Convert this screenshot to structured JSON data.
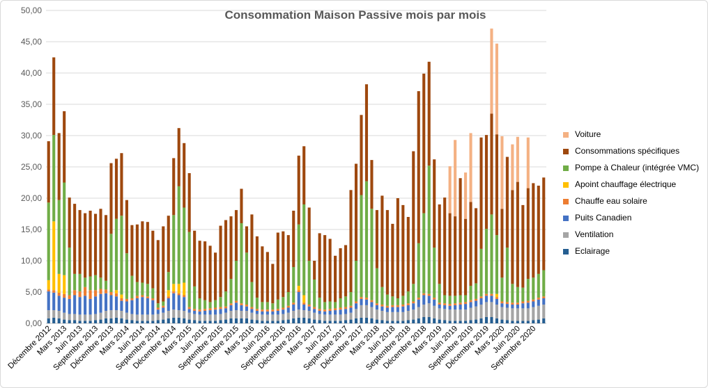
{
  "chart_data": {
    "type": "bar",
    "stacked": true,
    "title": "Consommation Maison Passive mois par mois",
    "xlabel": "",
    "ylabel": "",
    "ylim": [
      0,
      50
    ],
    "yticks": [
      "0,00",
      "5,00",
      "10,00",
      "15,00",
      "20,00",
      "25,00",
      "30,00",
      "35,00",
      "40,00",
      "45,00",
      "50,00"
    ],
    "grid": true,
    "legend_position": "right",
    "categories": [
      "Décembre 2012",
      "Janvier 2013",
      "Février 2013",
      "Mars 2013",
      "Avril 2013",
      "Mai 2013",
      "Juin 2013",
      "Juillet 2013",
      "Août 2013",
      "Septembre 2013",
      "Octobre 2013",
      "Novembre 2013",
      "Décembre 2013",
      "Janvier 2014",
      "Février 2014",
      "Mars 2014",
      "Avril 2014",
      "Mai 2014",
      "Juin 2014",
      "Juillet 2014",
      "Août 2014",
      "Septembre 2014",
      "Octobre 2014",
      "Novembre 2014",
      "Décembre 2014",
      "Janvier 2015",
      "Février 2015",
      "Mars 2015",
      "Avril 2015",
      "Mai 2015",
      "Juin 2015",
      "Juillet 2015",
      "Août 2015",
      "Septembre 2015",
      "Octobre 2015",
      "Novembre 2015",
      "Décembre 2015",
      "Janvier 2016",
      "Février 2016",
      "Mars 2016",
      "Avril 2016",
      "Mai 2016",
      "Juin 2016",
      "Juillet 2016",
      "Août 2016",
      "Septembre 2016",
      "Octobre 2016",
      "Novembre 2016",
      "Décembre 2016",
      "Janvier 2017",
      "Février 2017",
      "Mars 2017",
      "Avril 2017",
      "Mai 2017",
      "Juin 2017",
      "Juillet 2017",
      "Août 2017",
      "Septembre 2017",
      "Octobre 2017",
      "Novembre 2017",
      "Décembre 2017",
      "Janvier 2018",
      "Février 2018",
      "Mars 2018",
      "Avril 2018",
      "Mai 2018",
      "Juin 2018",
      "Juillet 2018",
      "Août 2018",
      "Septembre 2018",
      "Octobre 2018",
      "Novembre 2018",
      "Décembre 2018",
      "Janvier 2019",
      "Février 2019",
      "Mars 2019",
      "Avril 2019",
      "Mai 2019",
      "Juin 2019",
      "Juillet 2019",
      "Août 2019",
      "Septembre 2019",
      "Octobre 2019",
      "Novembre 2019",
      "Décembre 2019",
      "Janvier 2020",
      "Février 2020",
      "Mars 2020",
      "Avril 2020",
      "Mai 2020",
      "Juin 2020",
      "Juillet 2020",
      "Août 2020",
      "Septembre 2020",
      "Octobre 2020",
      "Novembre 2020"
    ],
    "x_tick_labels": [
      "Décembre 2012",
      "Mars 2013",
      "Juin 2013",
      "Septembre 2013",
      "Décembre 2013",
      "Mars 2014",
      "Juin 2014",
      "Septembre 2014",
      "Décembre 2014",
      "Mars 2015",
      "Juin 2015",
      "Septembre 2015",
      "Décembre 2015",
      "Mars 2016",
      "Juin 2016",
      "Septembre 2016",
      "Décembre 2016",
      "Mars 2017",
      "Juin 2017",
      "Septembre 2017",
      "Décembre 2017",
      "Mars 2018",
      "Juin 2018",
      "Septembre 2018",
      "Décembre 2018",
      "Mars 2019",
      "Juin 2019",
      "Septembre 2019",
      "Décembre 2019",
      "Mars 2020",
      "Juin 2020",
      "Septembre 2020"
    ],
    "legend_order": [
      "Voiture",
      "Consommations spécifiques",
      "Pompe à Chaleur (intégrée VMC)",
      "Apoint chauffage électrique",
      "Chauffe eau solaire",
      "Puits Canadien",
      "Ventilation",
      "Eclairage"
    ],
    "series": [
      {
        "name": "Eclairage",
        "color": "#255e91",
        "values": [
          0.8,
          0.9,
          0.8,
          0.6,
          0.5,
          0.5,
          0.4,
          0.4,
          0.4,
          0.5,
          0.6,
          0.8,
          0.8,
          0.9,
          0.8,
          0.6,
          0.5,
          0.4,
          0.4,
          0.4,
          0.4,
          0.5,
          0.6,
          0.8,
          0.9,
          0.9,
          0.8,
          0.6,
          0.5,
          0.4,
          0.4,
          0.4,
          0.4,
          0.5,
          0.6,
          0.8,
          0.8,
          0.8,
          0.8,
          0.6,
          0.5,
          0.4,
          0.4,
          0.4,
          0.4,
          0.5,
          0.6,
          0.8,
          0.9,
          0.9,
          0.8,
          0.6,
          0.5,
          0.4,
          0.4,
          0.4,
          0.4,
          0.5,
          0.6,
          0.8,
          0.9,
          0.9,
          0.8,
          0.6,
          0.5,
          0.4,
          0.4,
          0.4,
          0.4,
          0.5,
          0.6,
          0.8,
          1.0,
          1.0,
          0.8,
          0.6,
          0.5,
          0.4,
          0.4,
          0.4,
          0.4,
          0.5,
          0.6,
          0.8,
          1.0,
          1.0,
          0.8,
          0.6,
          0.5,
          0.4,
          0.4,
          0.4,
          0.4,
          0.5,
          0.6,
          0.8
        ]
      },
      {
        "name": "Ventilation",
        "color": "#a5a5a5",
        "values": [
          1.3,
          1.2,
          1.2,
          1.1,
          1.0,
          1.0,
          1.0,
          1.0,
          1.0,
          1.0,
          1.1,
          1.2,
          1.3,
          1.2,
          1.2,
          1.1,
          1.0,
          1.0,
          1.0,
          1.0,
          1.0,
          1.0,
          1.1,
          1.2,
          1.3,
          1.2,
          1.2,
          1.1,
          1.0,
          1.0,
          1.0,
          1.0,
          1.0,
          1.0,
          1.1,
          1.2,
          1.3,
          1.2,
          1.2,
          1.1,
          1.0,
          1.0,
          1.0,
          1.0,
          1.0,
          1.0,
          1.1,
          1.2,
          1.3,
          1.2,
          1.2,
          1.1,
          1.0,
          1.0,
          1.0,
          1.0,
          1.0,
          1.0,
          1.1,
          1.5,
          2.0,
          2.0,
          1.8,
          1.6,
          1.5,
          1.4,
          1.4,
          1.4,
          1.4,
          1.5,
          1.6,
          1.8,
          2.0,
          2.2,
          2.0,
          1.8,
          1.8,
          1.8,
          1.8,
          1.8,
          1.8,
          2.0,
          2.1,
          2.2,
          2.4,
          2.4,
          2.2,
          2.0,
          2.0,
          2.0,
          2.0,
          2.0,
          2.0,
          2.1,
          2.2,
          2.2
        ]
      },
      {
        "name": "Puits Canadien",
        "color": "#4472c4",
        "values": [
          3.0,
          2.8,
          2.4,
          2.4,
          2.4,
          3.0,
          2.8,
          3.0,
          2.5,
          2.8,
          3.0,
          2.8,
          2.4,
          2.2,
          1.6,
          1.8,
          2.2,
          2.6,
          2.8,
          2.6,
          2.3,
          0.7,
          0.8,
          2.0,
          2.6,
          2.4,
          2.2,
          0.6,
          0.5,
          0.5,
          0.6,
          0.7,
          0.8,
          0.8,
          0.7,
          0.9,
          1.2,
          0.9,
          0.7,
          0.6,
          0.5,
          0.5,
          0.5,
          0.5,
          0.6,
          0.7,
          0.8,
          1.0,
          2.8,
          0.9,
          0.7,
          0.6,
          0.5,
          0.5,
          0.6,
          0.7,
          0.8,
          0.8,
          0.8,
          0.9,
          1.0,
          0.9,
          0.8,
          0.7,
          0.7,
          0.7,
          0.8,
          0.8,
          0.9,
          0.9,
          1.0,
          1.2,
          1.5,
          1.2,
          1.0,
          0.6,
          0.6,
          0.6,
          0.7,
          0.8,
          0.9,
          0.9,
          0.9,
          1.0,
          1.0,
          1.0,
          0.9,
          0.6,
          0.6,
          0.6,
          0.6,
          0.8,
          0.9,
          0.9,
          1.0,
          1.0
        ]
      },
      {
        "name": "Chauffe eau solaire",
        "color": "#ed7d31",
        "values": [
          0.3,
          0.4,
          0.5,
          0.6,
          0.6,
          0.8,
          0.9,
          1.4,
          1.4,
          1.0,
          0.8,
          0.6,
          0.5,
          0.5,
          0.4,
          0.4,
          0.3,
          0.4,
          0.3,
          0.3,
          0.3,
          0.3,
          0.3,
          0.3,
          0.3,
          0.3,
          0.3,
          0.3,
          0.3,
          0.3,
          0.3,
          0.3,
          0.3,
          0.3,
          0.3,
          0.3,
          0.3,
          0.3,
          0.3,
          0.3,
          0.3,
          0.3,
          0.3,
          0.3,
          0.3,
          0.3,
          0.3,
          0.3,
          0.3,
          0.3,
          0.3,
          0.3,
          0.3,
          0.3,
          0.3,
          0.3,
          0.3,
          0.3,
          0.3,
          0.3,
          0.3,
          0.3,
          0.3,
          0.3,
          0.3,
          0.3,
          0.3,
          0.3,
          0.3,
          0.3,
          0.3,
          0.3,
          0.3,
          0.3,
          0.3,
          0.3,
          0.3,
          0.3,
          0.3,
          0.3,
          0.3,
          0.3,
          0.3,
          0.3,
          0.3,
          0.3,
          0.3,
          0.3,
          0.3,
          0.3,
          0.3,
          0.3,
          0.3,
          0.3,
          0.3,
          0.3
        ]
      },
      {
        "name": "Apoint chauffage électrique",
        "color": "#ffc000",
        "values": [
          1.5,
          11.0,
          3.0,
          3.0,
          0,
          0,
          0,
          0,
          0,
          0,
          0,
          0,
          0,
          0.5,
          0.6,
          0,
          0,
          0,
          0,
          0,
          0,
          0,
          0,
          1.0,
          1.2,
          1.5,
          2.0,
          0,
          0,
          0,
          0,
          0,
          0,
          0,
          0,
          0,
          0,
          0,
          0,
          0,
          0,
          0,
          0,
          0,
          0,
          0,
          0,
          0,
          0.7,
          1.2,
          0,
          0,
          0,
          0,
          0,
          0,
          0,
          0,
          0,
          0,
          0,
          0,
          0,
          0,
          0,
          0,
          0,
          0,
          0,
          0,
          0,
          0,
          0,
          0,
          0,
          0,
          0,
          0,
          0,
          0,
          0,
          0,
          0,
          0,
          0,
          0,
          0.5,
          0,
          0,
          0,
          0,
          0,
          0,
          0,
          0,
          0
        ]
      },
      {
        "name": "Pompe à Chaleur (intégrée VMC)",
        "color": "#70ad47",
        "values": [
          12.4,
          13.8,
          11.8,
          14.8,
          7.6,
          2.6,
          2.8,
          1.5,
          2.2,
          2.4,
          1.8,
          1.4,
          9.3,
          11.4,
          12.6,
          7.3,
          3.6,
          2.2,
          2.0,
          2.0,
          1.6,
          0.7,
          0.7,
          2.9,
          11.0,
          15.6,
          12.0,
          12.0,
          3.6,
          1.8,
          1.4,
          1.0,
          1.2,
          1.6,
          2.4,
          3.9,
          6.4,
          12.8,
          8.3,
          4.0,
          1.8,
          1.2,
          1.2,
          1.0,
          1.5,
          1.7,
          2.2,
          5.7,
          9.8,
          14.5,
          7.0,
          4.4,
          1.8,
          1.2,
          1.2,
          1.0,
          1.5,
          1.7,
          2.2,
          6.5,
          16.3,
          18.6,
          14.6,
          5.6,
          2.8,
          1.8,
          1.4,
          1.1,
          1.4,
          1.9,
          2.8,
          8.7,
          12.8,
          20.5,
          8.0,
          3.0,
          1.3,
          1.3,
          1.2,
          1.2,
          1.1,
          2.3,
          2.5,
          7.6,
          10.4,
          12.7,
          9.4,
          3.8,
          8.7,
          3.0,
          2.5,
          2.2,
          3.5,
          3.5,
          3.8,
          4.2
        ]
      },
      {
        "name": "Consommations spécifiques",
        "color": "#9e480e",
        "values": [
          9.8,
          12.4,
          10.7,
          11.4,
          8.0,
          11.2,
          10.2,
          10.3,
          10.5,
          9.8,
          11.0,
          10.5,
          11.3,
          9.6,
          10.0,
          8.5,
          8.1,
          9.2,
          9.8,
          9.9,
          9.2,
          10.1,
          12.0,
          9.0,
          9.1,
          9.3,
          10.3,
          9.4,
          8.9,
          9.2,
          9.4,
          9.0,
          7.6,
          11.4,
          11.4,
          10.0,
          8.1,
          5.5,
          4.2,
          10.8,
          9.8,
          8.9,
          8.0,
          6.3,
          10.7,
          10.5,
          9.1,
          9.0,
          11.0,
          9.3,
          8.5,
          3.0,
          10.3,
          10.7,
          10.0,
          7.4,
          8.0,
          8.2,
          16.3,
          15.5,
          12.8,
          15.5,
          7.8,
          9.3,
          14.6,
          13.5,
          11.6,
          16.0,
          14.5,
          11.9,
          21.2,
          24.3,
          22.3,
          16.6,
          14.1,
          12.7,
          15.6,
          13.2,
          12.7,
          18.7,
          12.2,
          13.4,
          12.0,
          17.8,
          15.0,
          16.1,
          16.1,
          11.0,
          14.5,
          15.0,
          16.8,
          13.2,
          14.5,
          15.1,
          14.1,
          14.8
        ]
      },
      {
        "name": "Voiture",
        "color": "#f4b183",
        "values": [
          0,
          0,
          0,
          0,
          0,
          0,
          0,
          0,
          0,
          0,
          0,
          0,
          0,
          0,
          0,
          0,
          0,
          0,
          0,
          0,
          0,
          0,
          0,
          0,
          0,
          0,
          0,
          0,
          0,
          0,
          0,
          0,
          0,
          0,
          0,
          0,
          0,
          0,
          0,
          0,
          0,
          0,
          0,
          0,
          0,
          0,
          0,
          0,
          0,
          0,
          0,
          0,
          0,
          0,
          0,
          0,
          0,
          0,
          0,
          0,
          0,
          0,
          0,
          0,
          0,
          0,
          0,
          0,
          0,
          0,
          0,
          0,
          0,
          0,
          0,
          0,
          0,
          7.5,
          12.2,
          0,
          7.4,
          11.0,
          0,
          0,
          0,
          13.6,
          14.5,
          11.6,
          0,
          7.3,
          7.2,
          0,
          8.1,
          0,
          0,
          0
        ]
      }
    ]
  }
}
